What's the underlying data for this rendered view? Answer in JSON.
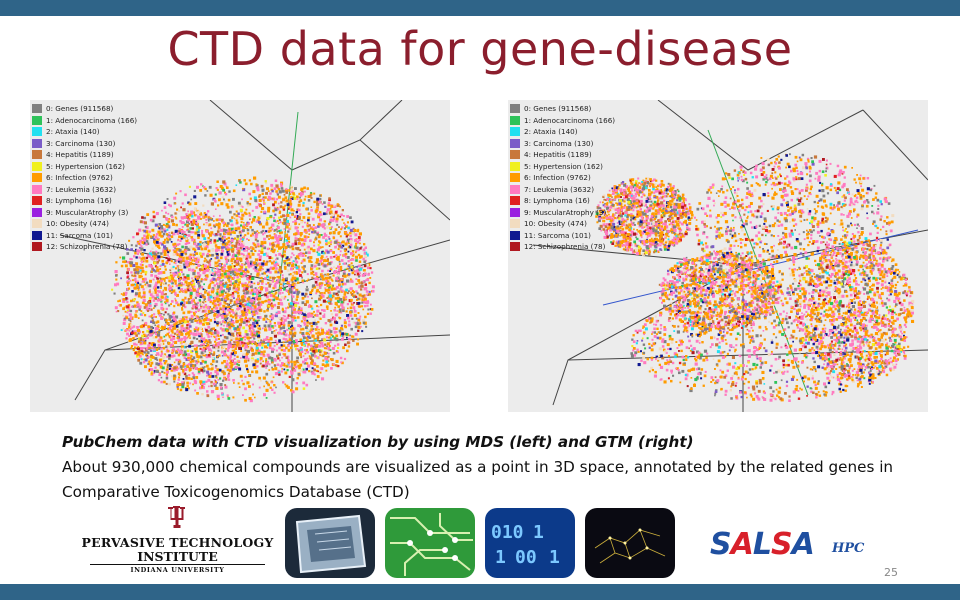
{
  "slide": {
    "title": "CTD data for gene-disease",
    "page_number": "25",
    "accent_color": "#8b1e2d",
    "bar_color": "#2f6488"
  },
  "legend": [
    {
      "label": "0: Genes (911568)",
      "color": "#808080"
    },
    {
      "label": "1: Adenocarcinoma (166)",
      "color": "#2ec25a"
    },
    {
      "label": "2: Ataxia (140)",
      "color": "#22e0f0"
    },
    {
      "label": "3: Carcinoma (130)",
      "color": "#7a5cc8"
    },
    {
      "label": "4: Hepatitis (1189)",
      "color": "#c8783c"
    },
    {
      "label": "5: Hypertension (162)",
      "color": "#f0f020"
    },
    {
      "label": "6: Infection (9762)",
      "color": "#ff9c00"
    },
    {
      "label": "7: Leukemia (3632)",
      "color": "#ff7ac0"
    },
    {
      "label": "8: Lymphoma (16)",
      "color": "#e02020"
    },
    {
      "label": "9: MuscularAtrophy (3)",
      "color": "#9a20e0"
    },
    {
      "label": "10: Obesity (474)",
      "color": "#f2dcc0"
    },
    {
      "label": "11: Sarcoma (101)",
      "color": "#101890"
    },
    {
      "label": "12: Schizophrenia (78)",
      "color": "#b01820"
    }
  ],
  "caption": {
    "heading": "PubChem data with CTD visualization by using MDS (left) and GTM (right)",
    "body": "About 930,000 chemical compounds are visualized as a point in 3D space, annotated by the related genes in Comparative Toxicogenomics Database (CTD)"
  },
  "pti_logo": {
    "line1": "PERVASIVE TECHNOLOGY",
    "line2": "INSTITUTE",
    "line3": "INDIANA UNIVERSITY"
  },
  "salsa_logo": {
    "text": "SALSA",
    "suffix": "HPC"
  }
}
